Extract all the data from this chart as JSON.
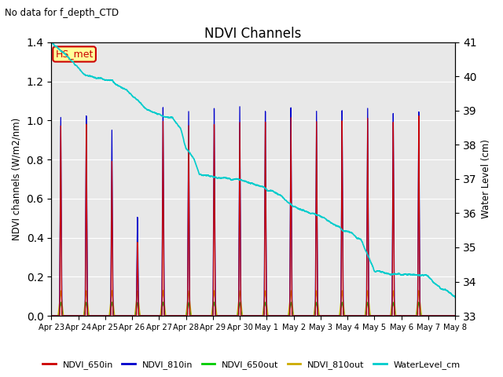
{
  "title": "NDVI Channels",
  "subtitle": "No data for f_depth_CTD",
  "ylabel_left": "NDVI channels (W/m2/nm)",
  "ylabel_right": "Water Level (cm)",
  "ylim_left": [
    0.0,
    1.4
  ],
  "ylim_right": [
    33.0,
    41.0
  ],
  "yticks_left": [
    0.0,
    0.2,
    0.4,
    0.6,
    0.8,
    1.0,
    1.2,
    1.4
  ],
  "yticks_right": [
    33.0,
    34.0,
    35.0,
    36.0,
    37.0,
    38.0,
    39.0,
    40.0,
    41.0
  ],
  "legend": [
    "NDVI_650in",
    "NDVI_810in",
    "NDVI_650out",
    "NDVI_810out",
    "WaterLevel_cm"
  ],
  "colors": {
    "NDVI_650in": "#cc0000",
    "NDVI_810in": "#0000cc",
    "NDVI_650out": "#00cc00",
    "NDVI_810out": "#ccaa00",
    "WaterLevel_cm": "#00cccc",
    "HS_met_text": "#cc0000",
    "HS_met_box_face": "#ffff99",
    "HS_met_box_edge": "#cc0000",
    "plot_bg": "#e8e8e8",
    "grid_color": "#ffffff"
  },
  "HS_met_label": "HS_met",
  "figsize": [
    6.4,
    4.8
  ],
  "dpi": 100
}
